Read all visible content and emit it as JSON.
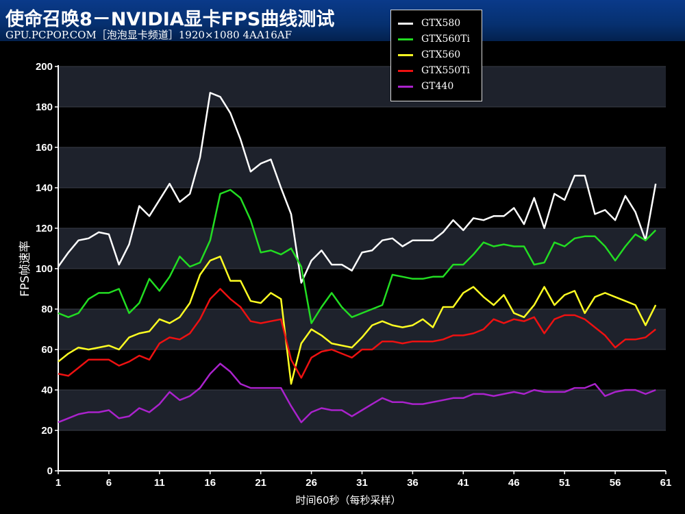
{
  "header": {
    "title": "使命召唤8－NVIDIA显卡FPS曲线测试",
    "subtitle": "GPU.PCPOP.COM［泡泡显卡频道］1920×1080 4AA16AF"
  },
  "chart_data": {
    "type": "line",
    "title": "使命召唤8－NVIDIA显卡FPS曲线测试",
    "xlabel": "时间60秒（每秒采样）",
    "ylabel": "FPS帧速率",
    "ylim": [
      0,
      200
    ],
    "xlim": [
      1,
      61
    ],
    "yticks": [
      0,
      20,
      40,
      60,
      80,
      100,
      120,
      140,
      160,
      180,
      200
    ],
    "xticks": [
      1,
      6,
      11,
      16,
      21,
      26,
      31,
      36,
      41,
      46,
      51,
      56,
      61
    ],
    "legend_position": "top-right",
    "background_bands": [
      "#000000",
      "#1e222c"
    ],
    "x": [
      1,
      2,
      3,
      4,
      5,
      6,
      7,
      8,
      9,
      10,
      11,
      12,
      13,
      14,
      15,
      16,
      17,
      18,
      19,
      20,
      21,
      22,
      23,
      24,
      25,
      26,
      27,
      28,
      29,
      30,
      31,
      32,
      33,
      34,
      35,
      36,
      37,
      38,
      39,
      40,
      41,
      42,
      43,
      44,
      45,
      46,
      47,
      48,
      49,
      50,
      51,
      52,
      53,
      54,
      55,
      56,
      57,
      58,
      59,
      60
    ],
    "series": [
      {
        "name": "GTX580",
        "color": "#ffffff",
        "values": [
          101,
          108,
          114,
          115,
          118,
          117,
          102,
          112,
          131,
          126,
          134,
          142,
          133,
          137,
          155,
          187,
          185,
          177,
          164,
          148,
          152,
          154,
          140,
          127,
          93,
          104,
          109,
          102,
          102,
          99,
          108,
          109,
          114,
          115,
          111,
          114,
          114,
          114,
          118,
          124,
          119,
          125,
          124,
          126,
          126,
          130,
          122,
          135,
          120,
          137,
          134,
          146,
          146,
          127,
          129,
          124,
          136,
          128,
          114,
          142
        ]
      },
      {
        "name": "GTX560Ti",
        "color": "#22dd22",
        "values": [
          78,
          76,
          78,
          85,
          88,
          88,
          90,
          78,
          83,
          95,
          89,
          96,
          106,
          101,
          103,
          114,
          137,
          139,
          135,
          124,
          108,
          109,
          107,
          110,
          101,
          73,
          81,
          88,
          81,
          76,
          78,
          80,
          82,
          97,
          96,
          95,
          95,
          96,
          96,
          102,
          102,
          107,
          113,
          111,
          112,
          111,
          111,
          102,
          103,
          113,
          111,
          115,
          116,
          116,
          111,
          104,
          111,
          117,
          114,
          119
        ]
      },
      {
        "name": "GTX560",
        "color": "#ffff22",
        "values": [
          54,
          58,
          61,
          60,
          61,
          62,
          60,
          66,
          68,
          69,
          75,
          73,
          76,
          83,
          97,
          104,
          106,
          94,
          94,
          84,
          83,
          88,
          85,
          43,
          63,
          70,
          67,
          63,
          62,
          61,
          66,
          72,
          74,
          72,
          71,
          72,
          75,
          71,
          81,
          81,
          88,
          91,
          86,
          82,
          87,
          78,
          76,
          82,
          91,
          82,
          87,
          89,
          78,
          86,
          88,
          86,
          84,
          82,
          72,
          82
        ]
      },
      {
        "name": "GTX550Ti",
        "color": "#ee1111",
        "values": [
          48,
          47,
          51,
          55,
          55,
          55,
          52,
          54,
          57,
          55,
          63,
          66,
          65,
          68,
          75,
          85,
          90,
          85,
          81,
          74,
          73,
          74,
          75,
          55,
          46,
          56,
          59,
          60,
          58,
          56,
          60,
          60,
          64,
          64,
          63,
          64,
          64,
          64,
          65,
          67,
          67,
          68,
          70,
          75,
          73,
          75,
          74,
          76,
          68,
          75,
          77,
          77,
          75,
          71,
          67,
          61,
          65,
          65,
          66,
          70
        ]
      },
      {
        "name": "GT440",
        "color": "#aa22cc",
        "values": [
          24,
          26,
          28,
          29,
          29,
          30,
          26,
          27,
          31,
          29,
          33,
          39,
          35,
          37,
          41,
          48,
          53,
          49,
          43,
          41,
          41,
          41,
          41,
          32,
          24,
          29,
          31,
          30,
          30,
          27,
          30,
          33,
          36,
          34,
          34,
          33,
          33,
          34,
          35,
          36,
          36,
          38,
          38,
          37,
          38,
          39,
          38,
          40,
          39,
          39,
          39,
          41,
          41,
          43,
          37,
          39,
          40,
          40,
          38,
          40
        ]
      }
    ]
  }
}
